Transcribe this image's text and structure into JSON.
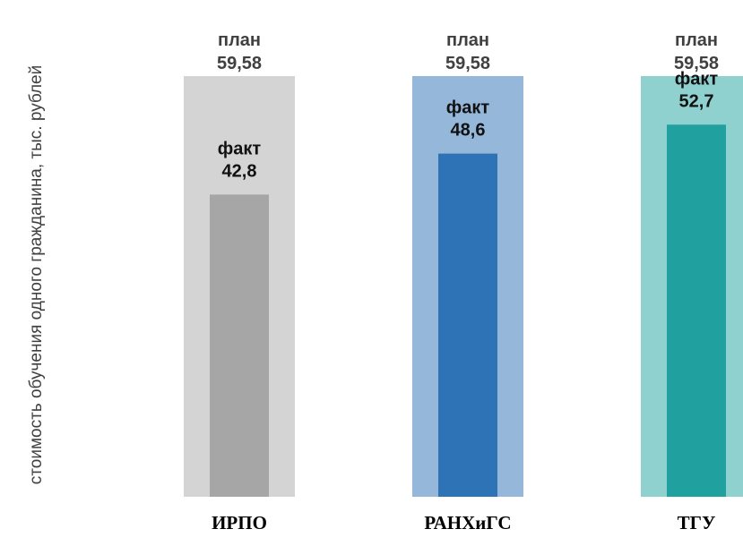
{
  "chart_data": {
    "type": "bar",
    "title": "",
    "xlabel": "",
    "ylabel": "стоимость обучения одного гражданина, тыс. рублей",
    "ylim": [
      0,
      59.58
    ],
    "grid": false,
    "legend": "none",
    "plan_word": "план",
    "fact_word": "факт",
    "categories": [
      "ИРПО",
      "РАНХиГС",
      "ТГУ"
    ],
    "series": [
      {
        "name": "план",
        "values": [
          59.58,
          59.58,
          59.58
        ],
        "labels": [
          "59,58",
          "59,58",
          "59,58"
        ],
        "colors": [
          "#d4d4d4",
          "#95b7d9",
          "#8fd1cf"
        ]
      },
      {
        "name": "факт",
        "values": [
          42.8,
          48.6,
          52.7
        ],
        "labels": [
          "42,8",
          "48,6",
          "52,7"
        ],
        "colors": [
          "#a6a6a6",
          "#2e73b5",
          "#20a09e"
        ]
      }
    ]
  }
}
